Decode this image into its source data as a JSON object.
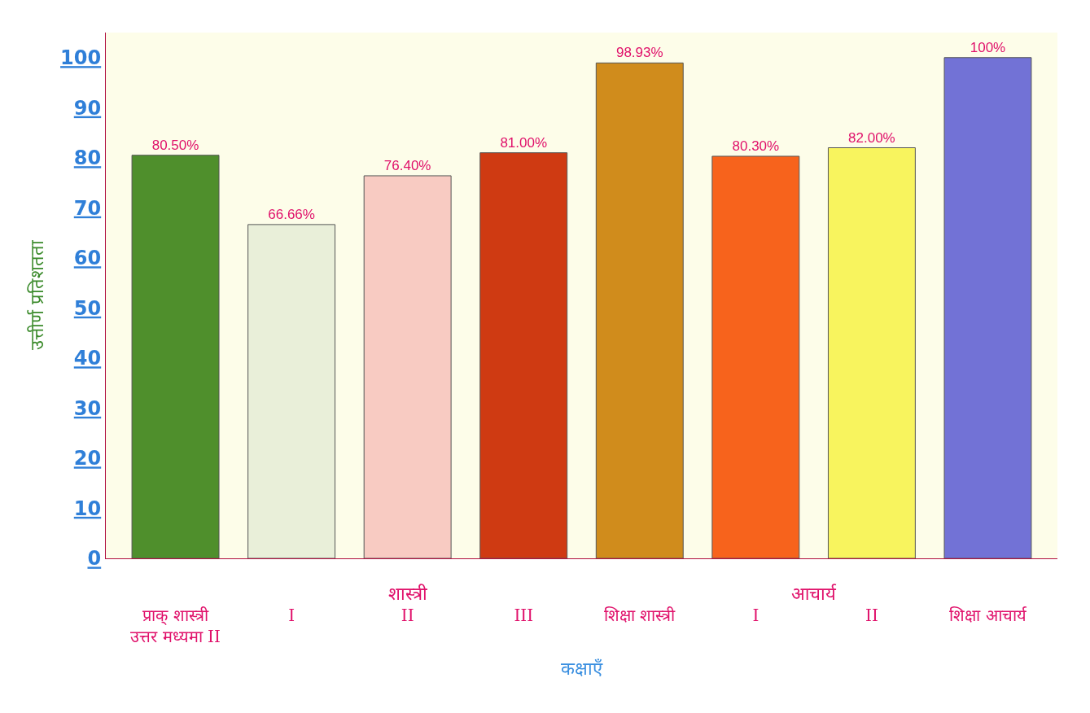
{
  "chart_data": {
    "type": "bar",
    "ylabel": "उत्तीर्ण प्रतिशतता",
    "xlabel": "कक्षाएँ",
    "categories": [
      "प्राक् शास्त्री\nउत्तर मध्यमा II",
      "I",
      "II",
      "III",
      "शिक्षा शास्त्री",
      "I",
      "II",
      "शिक्षा आचार्य"
    ],
    "values": [
      80.5,
      66.66,
      76.4,
      81,
      98.93,
      80.3,
      82,
      100
    ],
    "value_labels": [
      "80.50%",
      "66.66%",
      "76.40%",
      "81.00%",
      "98.93%",
      "80.30%",
      "82.00%",
      "100%"
    ],
    "colors": [
      "#4f8f2c",
      "#e9efd9",
      "#f8cbc2",
      "#cf3a12",
      "#d08c1c",
      "#f7631c",
      "#f8f45e",
      "#7272d6"
    ],
    "annotations": [
      "शास्त्री",
      "आचार्य"
    ],
    "ylim": [
      0,
      105
    ],
    "yticks": [
      0,
      10,
      20,
      30,
      40,
      50,
      60,
      70,
      80,
      90,
      100
    ],
    "grid": false,
    "legend": false
  }
}
